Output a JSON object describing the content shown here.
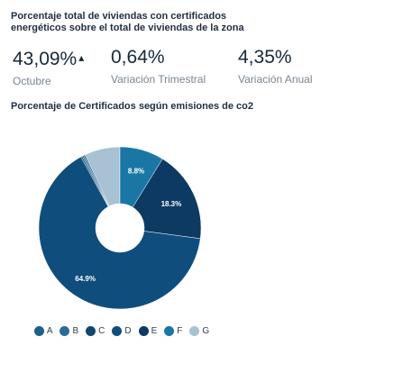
{
  "header": {
    "title": "Porcentaje total de viviendas con certificados energéticos sobre el total de viviendas de la zona"
  },
  "kpis": [
    {
      "value": "43,09%",
      "trend_icon": "caret-up-icon",
      "label": "Octubre"
    },
    {
      "value": "0,64%",
      "label": "Variación Trimestral"
    },
    {
      "value": "4,35%",
      "label": "Variación Anual"
    }
  ],
  "section": {
    "title": "Porcentaje de Certificados según emisiones de co2"
  },
  "chart_data": {
    "type": "pie",
    "style": "donut",
    "title": "Porcentaje de Certificados según emisiones de co2",
    "categories": [
      "A",
      "B",
      "C",
      "D",
      "E",
      "F",
      "G"
    ],
    "values": [
      0.3,
      0.3,
      0.3,
      64.9,
      18.3,
      8.8,
      7.1
    ],
    "data_labels": [
      "",
      "",
      "",
      "64.9%",
      "18.3%",
      "8.8%",
      ""
    ],
    "colors": [
      "#1f5f8b",
      "#2a6c98",
      "#13466c",
      "#0f4d7d",
      "#0c3a63",
      "#1a77a5",
      "#a8c2d3"
    ],
    "legend_position": "bottom"
  }
}
